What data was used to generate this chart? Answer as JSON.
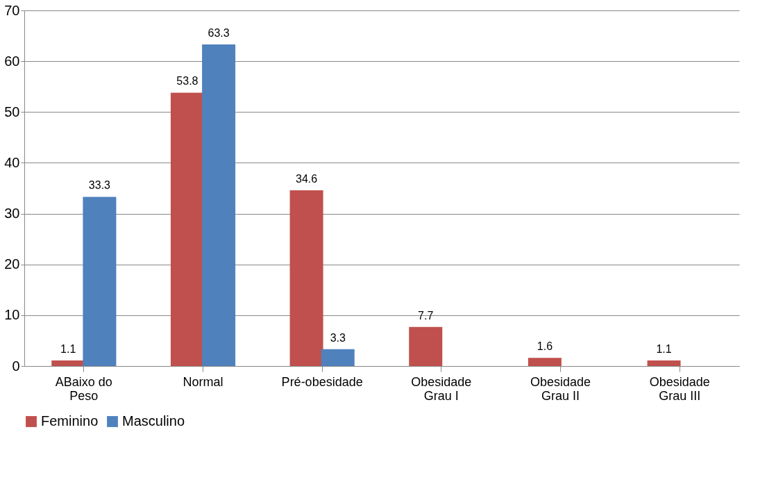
{
  "chart_data": {
    "type": "bar",
    "categories": [
      "ABaixo do Peso",
      "Normal",
      "Pré-obesidade",
      "Obesidade Grau I",
      "Obesidade Grau II",
      "Obesidade Grau III"
    ],
    "series": [
      {
        "name": "Feminino",
        "color": "#c0504d",
        "values": [
          1.1,
          53.8,
          34.6,
          7.7,
          1.6,
          1.1
        ]
      },
      {
        "name": "Masculino",
        "color": "#4f81bd",
        "values": [
          33.3,
          63.3,
          3.3,
          null,
          null,
          null
        ]
      }
    ],
    "ylim": [
      0,
      70
    ],
    "yticks": [
      0,
      10,
      20,
      30,
      40,
      50,
      60,
      70
    ],
    "grid": "y",
    "legend": "bottom",
    "data_labels": true
  }
}
